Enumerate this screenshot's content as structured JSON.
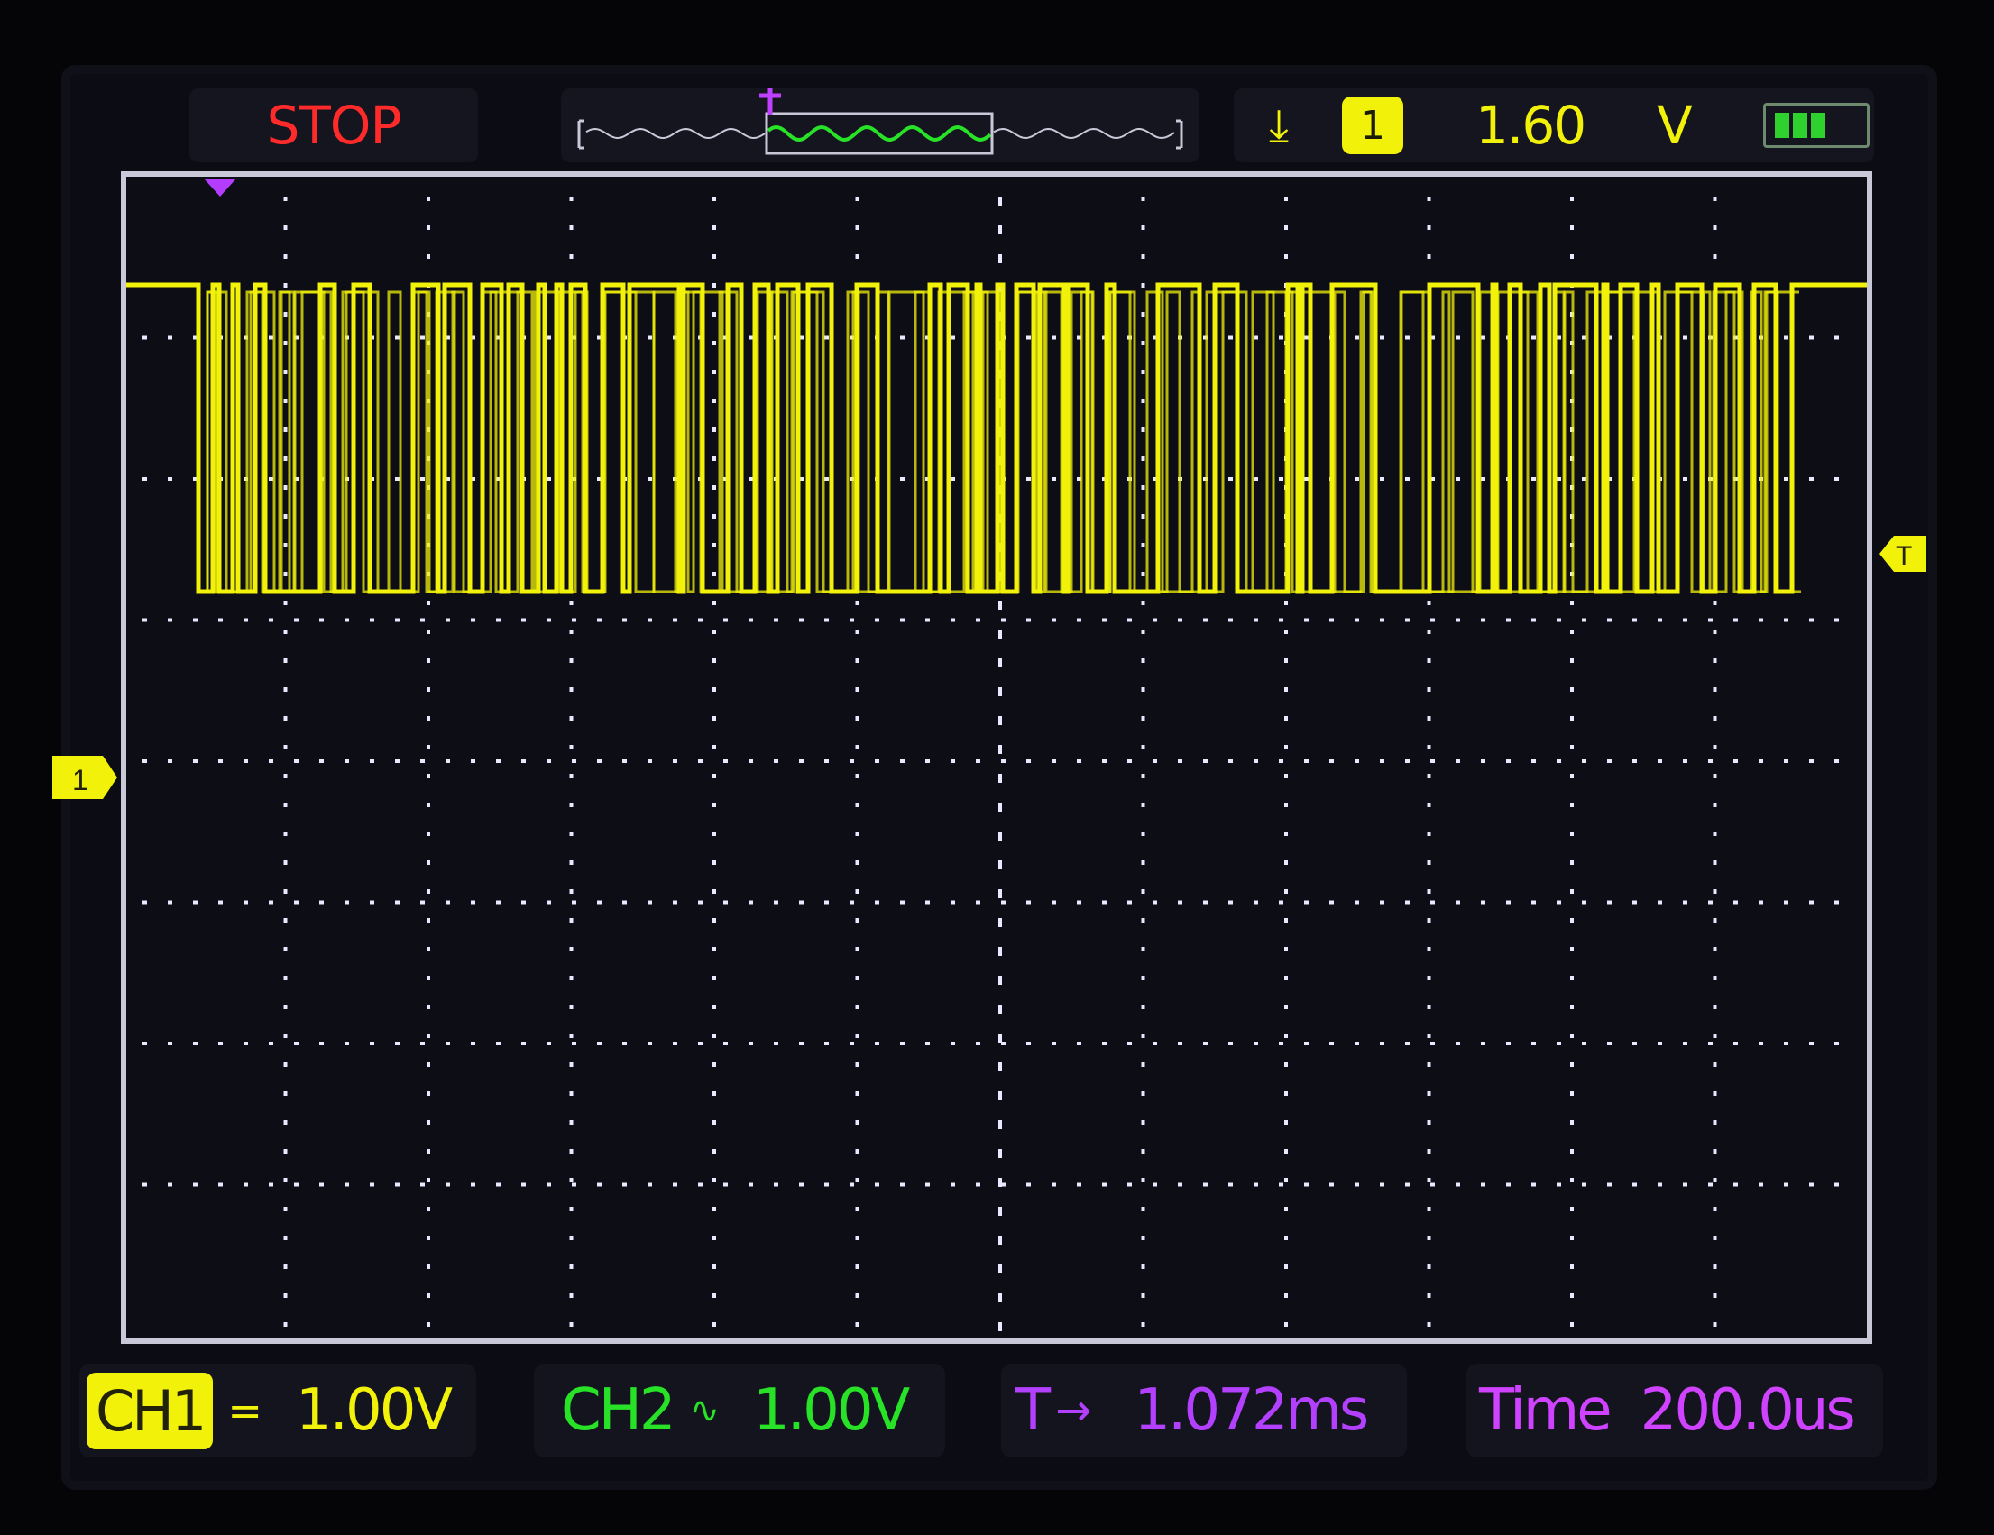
{
  "header": {
    "run_state": "STOP",
    "trigger": {
      "edge_icon": "falling-edge-icon",
      "source": "1",
      "level": "1.60",
      "unit": "V"
    },
    "battery_icon": "battery-icon"
  },
  "screen": {
    "ch1_marker": "1",
    "trigger_level_marker": "T",
    "trigger_position_marker": "T",
    "grid_divisions": {
      "horizontal": 12,
      "vertical": 8
    }
  },
  "footer": {
    "ch1": {
      "label": "CH1",
      "coupling": "=",
      "volts_div": "1.00V"
    },
    "ch2": {
      "label": "CH2",
      "coupling": "∿",
      "volts_div": "1.00V"
    },
    "trigger_delay": {
      "label": "T",
      "arrow": "→",
      "value": "1.072ms"
    },
    "timebase": {
      "label": "Time",
      "value": "200.0us"
    }
  },
  "colors": {
    "ch1": "#f1f10a",
    "ch2": "#27e227",
    "trigger": "#b340ff",
    "stop": "#ff2a2a",
    "grid": "#e8e8ff"
  }
}
